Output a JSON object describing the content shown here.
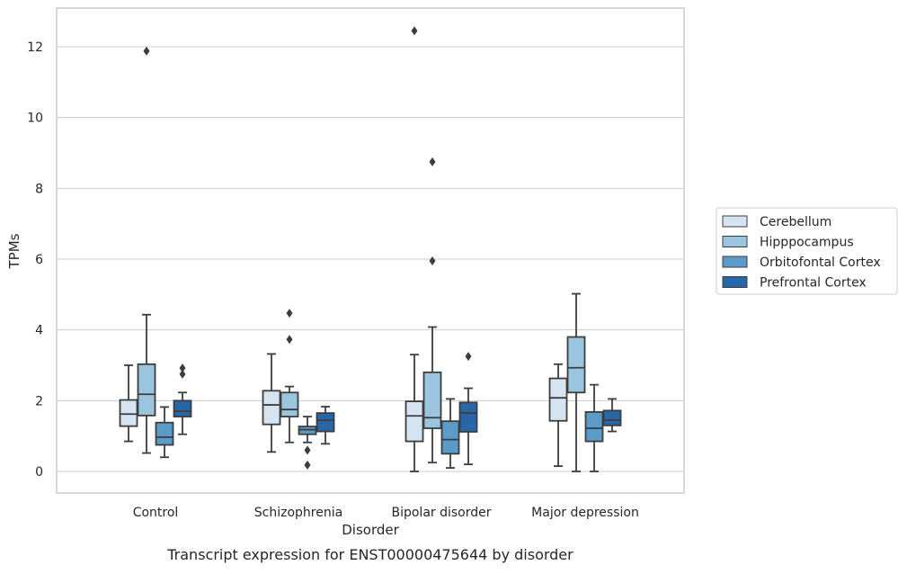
{
  "chart_data": {
    "type": "box",
    "caption": "Transcript expression for ENST00000475644 by disorder",
    "xlabel": "Disorder",
    "ylabel": "TPMs",
    "categories": [
      "Control",
      "Schizophrenia",
      "Bipolar disorder",
      "Major depression"
    ],
    "ylim": [
      -0.6,
      13.1
    ],
    "yticks": [
      0,
      2,
      4,
      6,
      8,
      10,
      12
    ],
    "grid": "horizontal",
    "legend_position": "right",
    "series": [
      {
        "name": "Cerebellum",
        "color": "#d6e4f1",
        "boxes": [
          {
            "whisker_low": 0.85,
            "q1": 1.28,
            "median": 1.62,
            "q3": 2.02,
            "whisker_high": 3.0,
            "outliers": []
          },
          {
            "whisker_low": 0.55,
            "q1": 1.33,
            "median": 1.88,
            "q3": 2.28,
            "whisker_high": 3.32,
            "outliers": []
          },
          {
            "whisker_low": 0.0,
            "q1": 0.85,
            "median": 1.57,
            "q3": 1.98,
            "whisker_high": 3.3,
            "outliers": [
              12.45
            ]
          },
          {
            "whisker_low": 0.15,
            "q1": 1.43,
            "median": 2.08,
            "q3": 2.63,
            "whisker_high": 3.03,
            "outliers": []
          }
        ]
      },
      {
        "name": "Hipppocampus",
        "color": "#9bc5de",
        "boxes": [
          {
            "whisker_low": 0.52,
            "q1": 1.58,
            "median": 2.18,
            "q3": 3.03,
            "whisker_high": 4.43,
            "outliers": [
              11.88
            ]
          },
          {
            "whisker_low": 0.82,
            "q1": 1.55,
            "median": 1.75,
            "q3": 2.23,
            "whisker_high": 2.4,
            "outliers": [
              4.47,
              3.73
            ]
          },
          {
            "whisker_low": 0.25,
            "q1": 1.22,
            "median": 1.52,
            "q3": 2.8,
            "whisker_high": 4.08,
            "outliers": [
              8.75,
              5.95
            ]
          },
          {
            "whisker_low": 0.0,
            "q1": 2.23,
            "median": 2.93,
            "q3": 3.8,
            "whisker_high": 5.02,
            "outliers": []
          }
        ]
      },
      {
        "name": "Orbitofontal Cortex",
        "color": "#5b9bc9",
        "boxes": [
          {
            "whisker_low": 0.4,
            "q1": 0.75,
            "median": 0.97,
            "q3": 1.38,
            "whisker_high": 1.82,
            "outliers": []
          },
          {
            "whisker_low": 0.82,
            "q1": 1.05,
            "median": 1.18,
            "q3": 1.27,
            "whisker_high": 1.55,
            "outliers": [
              0.6,
              0.18
            ]
          },
          {
            "whisker_low": 0.1,
            "q1": 0.5,
            "median": 0.9,
            "q3": 1.42,
            "whisker_high": 2.05,
            "outliers": []
          },
          {
            "whisker_low": 0.0,
            "q1": 0.85,
            "median": 1.22,
            "q3": 1.68,
            "whisker_high": 2.45,
            "outliers": []
          }
        ]
      },
      {
        "name": "Prefrontal Cortex",
        "color": "#2866a8",
        "boxes": [
          {
            "whisker_low": 1.05,
            "q1": 1.55,
            "median": 1.7,
            "q3": 2.0,
            "whisker_high": 2.23,
            "outliers": [
              2.92,
              2.75
            ]
          },
          {
            "whisker_low": 0.78,
            "q1": 1.13,
            "median": 1.45,
            "q3": 1.65,
            "whisker_high": 1.83,
            "outliers": []
          },
          {
            "whisker_low": 0.2,
            "q1": 1.12,
            "median": 1.65,
            "q3": 1.95,
            "whisker_high": 2.35,
            "outliers": [
              3.25
            ]
          },
          {
            "whisker_low": 1.13,
            "q1": 1.3,
            "median": 1.45,
            "q3": 1.72,
            "whisker_high": 2.05,
            "outliers": []
          }
        ]
      }
    ]
  }
}
